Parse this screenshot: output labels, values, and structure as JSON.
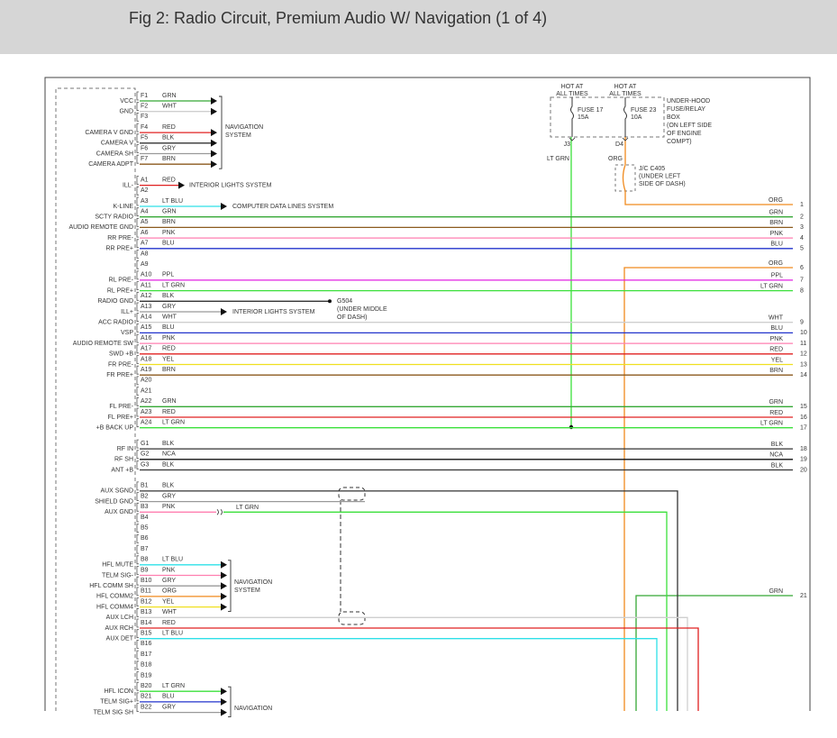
{
  "header": {
    "title": "Fig 2: Radio Circuit, Premium Audio W/ Navigation (1 of 4)"
  },
  "fuses": [
    {
      "hot": [
        "HOT AT",
        "ALL TIMES"
      ],
      "name": "FUSE 17",
      "rating": "15A",
      "pin": "J3",
      "wire": "LT GRN",
      "color": "#3be03b"
    },
    {
      "hot": [
        "HOT AT",
        "ALL TIMES"
      ],
      "name": "FUSE 23",
      "rating": "10A",
      "pin": "D4",
      "wire": "ORG",
      "color": "#f08a1d"
    }
  ],
  "fuse_box": [
    "UNDER-HOOD",
    "FUSE/RELAY",
    "BOX",
    "(ON LEFT SIDE",
    "OF ENGINE",
    "COMPT)"
  ],
  "junction": [
    "J/C C405",
    "(UNDER LEFT",
    "SIDE OF DASH)"
  ],
  "ground": [
    "G504",
    "(UNDER MIDDLE",
    "OF DASH)"
  ],
  "splice": {
    "wire": "LT GRN",
    "color": "#3be03b"
  },
  "feeds": [
    {
      "wire": "ORG",
      "num": "1",
      "color": "#f08a1d"
    },
    {
      "wire": "ORG",
      "num": "6",
      "color": "#f08a1d"
    },
    {
      "wire": "GRN",
      "num": "21",
      "color": "#35a835"
    }
  ],
  "destinations": [
    {
      "text": [
        "NAVIGATION",
        "SYSTEM"
      ]
    },
    {
      "text": [
        "INTERIOR LIGHTS SYSTEM"
      ]
    },
    {
      "text": [
        "COMPUTER DATA LINES SYSTEM"
      ]
    },
    {
      "text": [
        "INTERIOR LIGHTS SYSTEM"
      ]
    },
    {
      "text": [
        "NAVIGATION",
        "SYSTEM"
      ]
    },
    {
      "text": [
        "NAVIGATION"
      ]
    }
  ],
  "connector": [
    {
      "pins": [
        {
          "pin": "F1",
          "label": "VCC",
          "wire": "GRN",
          "color": "#35a835"
        },
        {
          "pin": "F2",
          "label": "GND",
          "wire": "WHT",
          "color": "#cfcfcf"
        },
        {
          "pin": "F3"
        },
        {
          "pin": "F4",
          "label": "CAMERA V GND",
          "wire": "RED",
          "color": "#e02020"
        },
        {
          "pin": "F5",
          "label": "CAMERA V",
          "wire": "BLK",
          "color": "#333333"
        },
        {
          "pin": "F6",
          "label": "CAMERA SH",
          "wire": "GRY",
          "color": "#999999"
        },
        {
          "pin": "F7",
          "label": "CAMERA ADPT",
          "wire": "BRN",
          "color": "#8b5a1e"
        }
      ]
    },
    {
      "pins": [
        {
          "pin": "A1",
          "label": "ILL-",
          "wire": "RED",
          "color": "#e02020"
        },
        {
          "pin": "A2"
        },
        {
          "pin": "A3",
          "label": "K-LINE",
          "wire": "LT BLU",
          "color": "#2ee0e8"
        },
        {
          "pin": "A4",
          "label": "SCTY RADIO",
          "wire": "GRN",
          "color": "#35a835",
          "end": {
            "wire": "GRN",
            "num": "2"
          }
        },
        {
          "pin": "A5",
          "label": "AUDIO REMOTE GND",
          "wire": "BRN",
          "color": "#8b5a1e",
          "end": {
            "wire": "BRN",
            "num": "3"
          }
        },
        {
          "pin": "A6",
          "label": "RR PRE-",
          "wire": "PNK",
          "color": "#ff7fb0",
          "end": {
            "wire": "PNK",
            "num": "4"
          }
        },
        {
          "pin": "A7",
          "label": "RR PRE+",
          "wire": "BLU",
          "color": "#2233cc",
          "end": {
            "wire": "BLU",
            "num": "5"
          }
        },
        {
          "pin": "A8"
        },
        {
          "pin": "A9"
        },
        {
          "pin": "A10",
          "label": "RL PRE-",
          "wire": "PPL",
          "color": "#e020e0",
          "end": {
            "wire": "PPL",
            "num": "7"
          }
        },
        {
          "pin": "A11",
          "label": "RL PRE+",
          "wire": "LT GRN",
          "color": "#3be03b",
          "end": {
            "wire": "LT GRN",
            "num": "8"
          }
        },
        {
          "pin": "A12",
          "label": "RADIO GND",
          "wire": "BLK",
          "color": "#333333"
        },
        {
          "pin": "A13",
          "label": "ILL+",
          "wire": "GRY",
          "color": "#999999"
        },
        {
          "pin": "A14",
          "label": "ACC RADIO",
          "wire": "WHT",
          "color": "#cfcfcf",
          "end": {
            "wire": "WHT",
            "num": "9"
          }
        },
        {
          "pin": "A15",
          "label": "VSP",
          "wire": "BLU",
          "color": "#2233cc",
          "end": {
            "wire": "BLU",
            "num": "10"
          }
        },
        {
          "pin": "A16",
          "label": "AUDIO REMOTE SW",
          "wire": "PNK",
          "color": "#ff7fb0",
          "end": {
            "wire": "PNK",
            "num": "11"
          }
        },
        {
          "pin": "A17",
          "label": "SWD +B",
          "wire": "RED",
          "color": "#e02020",
          "end": {
            "wire": "RED",
            "num": "12"
          }
        },
        {
          "pin": "A18",
          "label": "FR PRE-",
          "wire": "YEL",
          "color": "#f0e020",
          "end": {
            "wire": "YEL",
            "num": "13"
          }
        },
        {
          "pin": "A19",
          "label": "FR PRE+",
          "wire": "BRN",
          "color": "#8b5a1e",
          "end": {
            "wire": "BRN",
            "num": "14"
          }
        },
        {
          "pin": "A20"
        },
        {
          "pin": "A21"
        },
        {
          "pin": "A22",
          "label": "FL PRE-",
          "wire": "GRN",
          "color": "#35a835",
          "end": {
            "wire": "GRN",
            "num": "15"
          }
        },
        {
          "pin": "A23",
          "label": "FL PRE+",
          "wire": "RED",
          "color": "#e02020",
          "end": {
            "wire": "RED",
            "num": "16"
          }
        },
        {
          "pin": "A24",
          "label": "+B BACK UP",
          "wire": "LT GRN",
          "color": "#3be03b",
          "end": {
            "wire": "LT GRN",
            "num": "17"
          }
        }
      ]
    },
    {
      "pins": [
        {
          "pin": "G1",
          "label": "RF IN",
          "wire": "BLK",
          "color": "#333333",
          "end": {
            "wire": "BLK",
            "num": "18"
          }
        },
        {
          "pin": "G2",
          "label": "RF SH",
          "wire": "NCA",
          "color": "#111111",
          "end": {
            "wire": "NCA",
            "num": "19"
          }
        },
        {
          "pin": "G3",
          "label": "ANT +B",
          "wire": "BLK",
          "color": "#333333",
          "end": {
            "wire": "BLK",
            "num": "20"
          }
        }
      ]
    },
    {
      "pins": [
        {
          "pin": "B1",
          "label": "AUX SGND",
          "wire": "BLK",
          "color": "#333333"
        },
        {
          "pin": "B2",
          "label": "SHIELD GND",
          "wire": "GRY",
          "color": "#999999"
        },
        {
          "pin": "B3",
          "label": "AUX GND",
          "wire": "PNK",
          "color": "#ff7fb0"
        },
        {
          "pin": "B4"
        },
        {
          "pin": "B5"
        },
        {
          "pin": "B6"
        },
        {
          "pin": "B7"
        },
        {
          "pin": "B8",
          "label": "HFL MUTE",
          "wire": "LT BLU",
          "color": "#2ee0e8"
        },
        {
          "pin": "B9",
          "label": "TELM SIG-",
          "wire": "PNK",
          "color": "#ff7fb0"
        },
        {
          "pin": "B10",
          "label": "HFL COMM SH",
          "wire": "GRY",
          "color": "#999999"
        },
        {
          "pin": "B11",
          "label": "HFL COMM2",
          "wire": "ORG",
          "color": "#f08a1d"
        },
        {
          "pin": "B12",
          "label": "HFL COMM4",
          "wire": "YEL",
          "color": "#f0e020"
        },
        {
          "pin": "B13",
          "label": "AUX LCH",
          "wire": "WHT",
          "color": "#cfcfcf"
        },
        {
          "pin": "B14",
          "label": "AUX RCH",
          "wire": "RED",
          "color": "#e02020"
        },
        {
          "pin": "B15",
          "label": "AUX DET",
          "wire": "LT BLU",
          "color": "#2ee0e8"
        },
        {
          "pin": "B16"
        },
        {
          "pin": "B17"
        },
        {
          "pin": "B18"
        },
        {
          "pin": "B19"
        },
        {
          "pin": "B20",
          "label": "HFL ICON",
          "wire": "LT GRN",
          "color": "#3be03b"
        },
        {
          "pin": "B21",
          "label": "TELM SIG+",
          "wire": "BLU",
          "color": "#2233cc"
        },
        {
          "pin": "B22",
          "label": "TELM SIG SH",
          "wire": "GRY",
          "color": "#999999"
        }
      ]
    }
  ]
}
